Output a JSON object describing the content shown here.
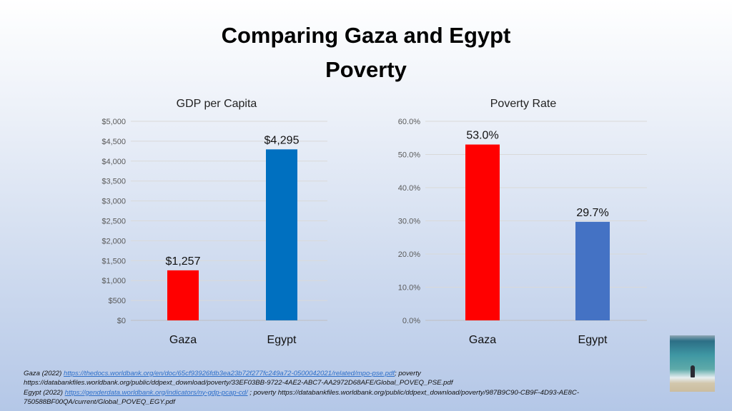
{
  "title_line1": "Comparing Gaza and Egypt",
  "title_line2": "Poverty",
  "chart_data": [
    {
      "type": "bar",
      "title": "GDP per Capita",
      "categories": [
        "Gaza",
        "Egypt"
      ],
      "values": [
        1257,
        4295
      ],
      "data_labels": [
        "$1,257",
        "$4,295"
      ],
      "colors": [
        "#ff0000",
        "#0070c0"
      ],
      "ylim": [
        0,
        5000
      ],
      "yticks": [
        0,
        500,
        1000,
        1500,
        2000,
        2500,
        3000,
        3500,
        4000,
        4500,
        5000
      ],
      "ytick_labels": [
        "$0",
        "$500",
        "$1,000",
        "$1,500",
        "$2,000",
        "$2,500",
        "$3,000",
        "$3,500",
        "$4,000",
        "$4,500",
        "$5,000"
      ],
      "xlabel": "",
      "ylabel": "",
      "grid": true,
      "legend": "none"
    },
    {
      "type": "bar",
      "title": "Poverty Rate",
      "categories": [
        "Gaza",
        "Egypt"
      ],
      "values": [
        53.0,
        29.7
      ],
      "data_labels": [
        "53.0%",
        "29.7%"
      ],
      "colors": [
        "#ff0000",
        "#4472c4"
      ],
      "ylim": [
        0,
        60
      ],
      "yticks": [
        0,
        10,
        20,
        30,
        40,
        50,
        60
      ],
      "ytick_labels": [
        "0.0%",
        "10.0%",
        "20.0%",
        "30.0%",
        "40.0%",
        "50.0%",
        "60.0%"
      ],
      "xlabel": "",
      "ylabel": "",
      "grid": true,
      "legend": "none"
    }
  ],
  "footnotes": {
    "gaza_prefix": "Gaza (2022) ",
    "gaza_link": "https://thedocs.worldbank.org/en/doc/65cf93926fdb3ea23b72f277fc249a72-0500042021/related/mpo-pse.pdf",
    "gaza_suffix": ";  poverty",
    "gaza_line2": "https://databankfiles.worldbank.org/public/ddpext_download/poverty/33EF03BB-9722-4AE2-ABC7-AA2972D68AFE/Global_POVEQ_PSE.pdf",
    "egypt_prefix": "Egypt (2022) ",
    "egypt_link": "https://genderdata.worldbank.org/indicators/ny-gdp-pcap-cd/",
    "egypt_suffix": "  ; poverty https://databankfiles.worldbank.org/public/ddpext_download/poverty/987B9C90-CB9F-4D93-AE8C-",
    "egypt_line2": "750588BF00QA/current/Global_POVEQ_EGY.pdf"
  }
}
